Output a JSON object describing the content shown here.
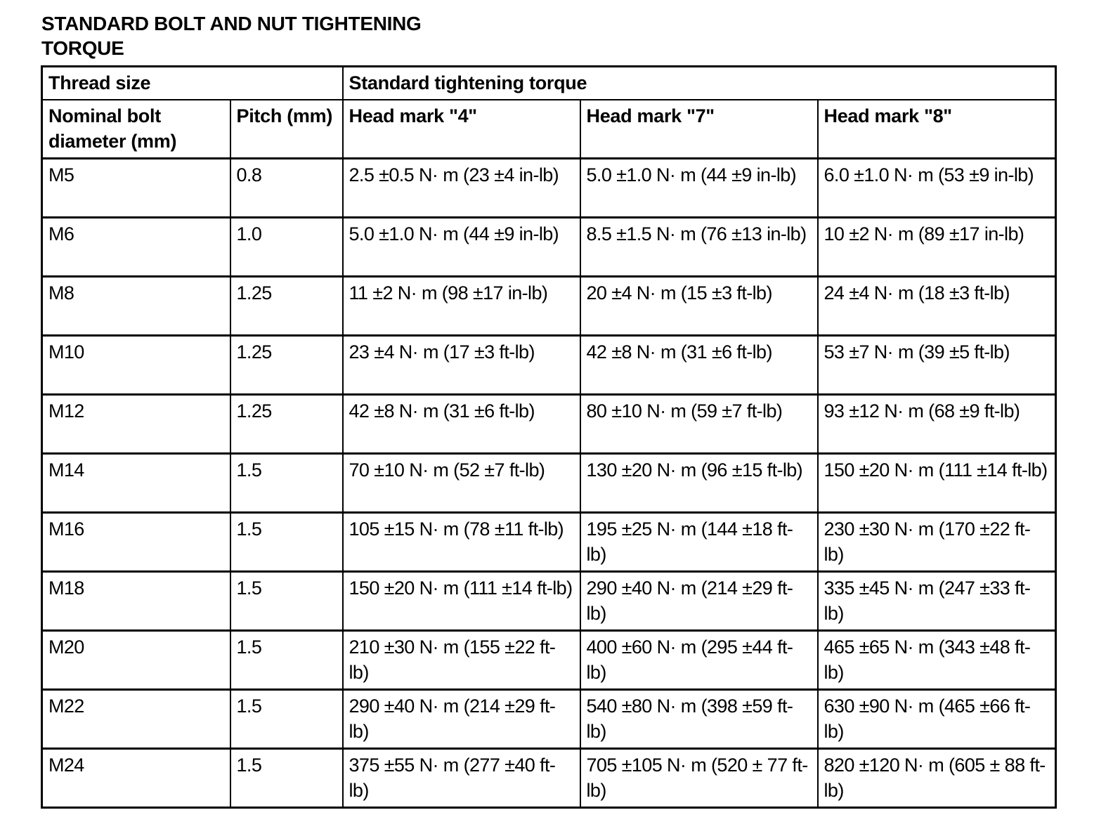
{
  "document": {
    "title_line1": "STANDARD BOLT AND NUT TIGHTENING",
    "title_line2": "TORQUE"
  },
  "table": {
    "group_headers": {
      "thread_size": "Thread size",
      "torque": "Standard tightening torque"
    },
    "headers": [
      "Nominal bolt diameter (mm)",
      "Pitch (mm)",
      "Head mark \"4\"",
      "Head mark \"7\"",
      "Head mark \"8\""
    ],
    "rows": [
      [
        "M5",
        "0.8",
        "2.5 ±0.5 N· m (23 ±4 in-lb)",
        "5.0 ±1.0 N· m (44 ±9 in-lb)",
        "6.0 ±1.0 N· m (53 ±9 in-lb)"
      ],
      [
        "M6",
        "1.0",
        "5.0 ±1.0 N· m (44 ±9 in-lb)",
        "8.5 ±1.5 N· m (76 ±13 in-lb)",
        "10 ±2 N· m (89 ±17 in-lb)"
      ],
      [
        "M8",
        "1.25",
        "11 ±2 N· m (98 ±17 in-lb)",
        "20 ±4 N· m (15 ±3 ft-lb)",
        "24 ±4 N· m (18 ±3 ft-lb)"
      ],
      [
        "M10",
        "1.25",
        "23 ±4 N· m (17 ±3 ft-lb)",
        "42 ±8 N· m (31 ±6 ft-lb)",
        "53 ±7 N· m (39 ±5 ft-lb)"
      ],
      [
        "M12",
        "1.25",
        "42 ±8 N· m (31 ±6 ft-lb)",
        "80 ±10 N· m (59 ±7 ft-lb)",
        "93 ±12 N· m (68 ±9 ft-lb)"
      ],
      [
        "M14",
        "1.5",
        "70 ±10 N· m (52 ±7 ft-lb)",
        "130 ±20 N· m (96 ±15 ft-lb)",
        "150 ±20 N· m (111 ±14 ft-lb)"
      ],
      [
        "M16",
        "1.5",
        "105 ±15 N· m (78 ±11 ft-lb)",
        "195 ±25 N· m (144 ±18 ft-lb)",
        "230 ±30 N· m (170 ±22 ft-lb)"
      ],
      [
        "M18",
        "1.5",
        "150 ±20 N· m (111 ±14 ft-lb)",
        "290 ±40 N· m (214 ±29 ft-lb)",
        "335 ±45 N· m (247 ±33 ft-lb)"
      ],
      [
        "M20",
        "1.5",
        "210 ±30 N· m (155 ±22 ft-lb)",
        "400 ±60 N· m (295 ±44 ft-lb)",
        "465 ±65 N· m (343 ±48 ft-lb)"
      ],
      [
        "M22",
        "1.5",
        "290 ±40 N· m (214 ±29 ft-lb)",
        "540 ±80 N· m (398 ±59 ft-lb)",
        "630 ±90 N· m (465 ±66 ft-lb)"
      ],
      [
        "M24",
        "1.5",
        "375 ±55 N· m (277 ±40 ft-lb)",
        "705 ±105 N· m (520 ± 77 ft-lb)",
        "820 ±120 N· m (605 ± 88 ft-lb)"
      ]
    ]
  }
}
